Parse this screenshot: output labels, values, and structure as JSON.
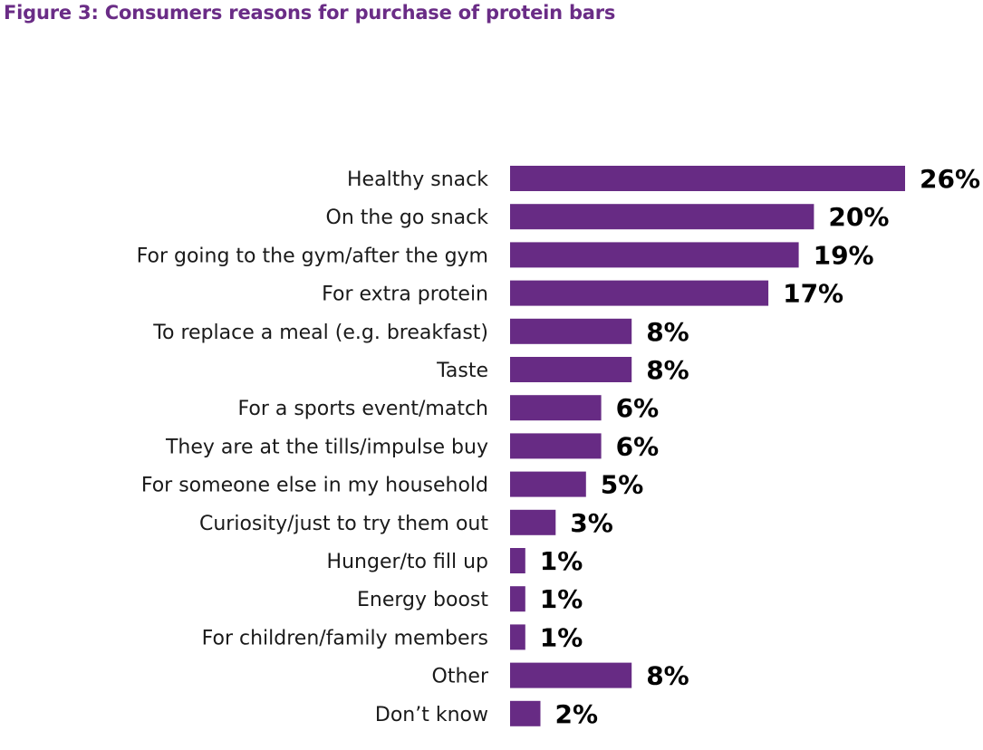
{
  "title": "Figure 3: Consumers reasons for purchase of protein bars",
  "colors": {
    "title": "#6a2c86",
    "bar": "#672b84"
  },
  "chart_data": {
    "type": "bar",
    "orientation": "horizontal",
    "title": "Figure 3: Consumers reasons for purchase of protein bars",
    "xlabel": "",
    "ylabel": "",
    "xlim": [
      0,
      26
    ],
    "grid": false,
    "legend": "none",
    "value_suffix": "%",
    "categories": [
      "Healthy snack",
      "On the go snack",
      "For going to the gym/after the gym",
      "For extra protein",
      "To replace a meal (e.g. breakfast)",
      "Taste",
      "For a sports event/match",
      "They are at the tills/impulse buy",
      "For someone else in my household",
      "Curiosity/just to try them out",
      "Hunger/to fill up",
      "Energy boost",
      "For children/family members",
      "Other",
      "Don’t know"
    ],
    "values": [
      26,
      20,
      19,
      17,
      8,
      8,
      6,
      6,
      5,
      3,
      1,
      1,
      1,
      8,
      2
    ],
    "value_labels": [
      "26%",
      "20%",
      "19%",
      "17%",
      "8%",
      "8%",
      "6%",
      "6%",
      "5%",
      "3%",
      "1%",
      "1%",
      "1%",
      "8%",
      "2%"
    ]
  }
}
